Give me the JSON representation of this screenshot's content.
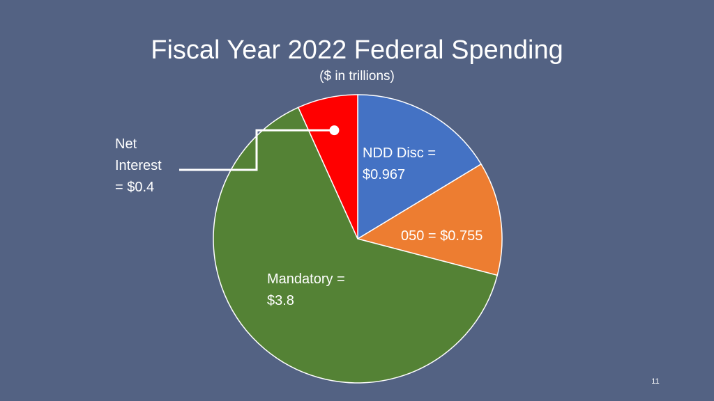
{
  "colors": {
    "background": "#536283",
    "slice_border": "#ffffff",
    "leader_line": "#ffffff"
  },
  "page_number": "11",
  "chart_data": {
    "type": "pie",
    "title": "Fiscal Year 2022 Federal Spending",
    "subtitle": "($ in trillions)",
    "start_angle_deg": 0,
    "direction": "clockwise",
    "slices": [
      {
        "name": "NDD Disc",
        "value": 0.967,
        "color": "#4472c4",
        "label_lines": [
          "NDD Disc =",
          "$0.967"
        ]
      },
      {
        "name": "050",
        "value": 0.755,
        "color": "#ed7d31",
        "label_lines": [
          "050 = $0.755"
        ]
      },
      {
        "name": "Mandatory",
        "value": 3.8,
        "color": "#548235",
        "label_lines": [
          "Mandatory =",
          "$3.8"
        ]
      },
      {
        "name": "Net Interest",
        "value": 0.4,
        "color": "#ff0000",
        "label_lines": [
          "Net",
          "Interest",
          "= $0.4"
        ]
      }
    ]
  }
}
